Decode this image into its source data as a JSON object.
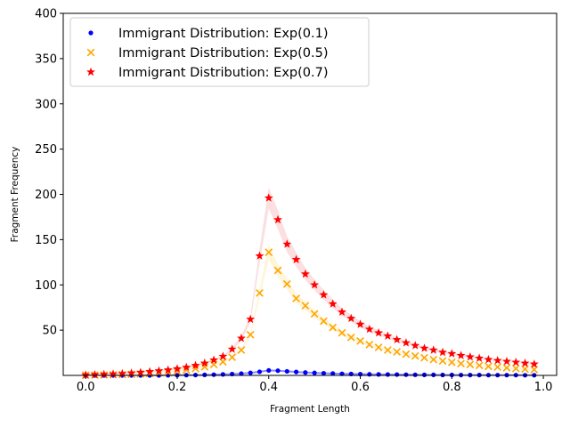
{
  "chart_data": {
    "type": "scatter",
    "xlabel": "Fragment Length",
    "ylabel": "Fragment Frequency",
    "xlim": [
      -0.049,
      1.029
    ],
    "ylim": [
      0,
      400
    ],
    "xticks": [
      {
        "value": 0.0,
        "label": "0.0"
      },
      {
        "value": 0.2,
        "label": "0.2"
      },
      {
        "value": 0.4,
        "label": "0.4"
      },
      {
        "value": 0.6,
        "label": "0.6"
      },
      {
        "value": 0.8,
        "label": "0.8"
      },
      {
        "value": 1.0,
        "label": "1.0"
      }
    ],
    "yticks": [
      {
        "value": 50,
        "label": "50"
      },
      {
        "value": 100,
        "label": "100"
      },
      {
        "value": 150,
        "label": "150"
      },
      {
        "value": 200,
        "label": "200"
      },
      {
        "value": 250,
        "label": "250"
      },
      {
        "value": 300,
        "label": "300"
      },
      {
        "value": 350,
        "label": "350"
      },
      {
        "value": 400,
        "label": "400"
      }
    ],
    "grid": false,
    "legend_position": "top-left",
    "x": [
      0.0,
      0.02,
      0.04,
      0.06,
      0.08,
      0.1,
      0.12,
      0.14,
      0.16,
      0.18,
      0.2,
      0.22,
      0.24,
      0.26,
      0.28,
      0.3,
      0.32,
      0.34,
      0.36,
      0.38,
      0.4,
      0.42,
      0.44,
      0.46,
      0.48,
      0.5,
      0.52,
      0.54,
      0.56,
      0.58,
      0.6,
      0.62,
      0.64,
      0.66,
      0.68,
      0.7,
      0.72,
      0.74,
      0.76,
      0.78,
      0.8,
      0.82,
      0.84,
      0.86,
      0.88,
      0.9,
      0.92,
      0.94,
      0.96,
      0.98
    ],
    "series": [
      {
        "name": "Immigrant Distribution: Exp(0.1)",
        "marker": "circle",
        "color": "#0000ff",
        "band_color": "#0000ff",
        "values": [
          0,
          0,
          0,
          0,
          0,
          0,
          0,
          0,
          0,
          0.1,
          0.2,
          0.3,
          0.4,
          0.6,
          0.8,
          1.1,
          1.5,
          2.0,
          2.8,
          4.0,
          5.5,
          5.2,
          4.5,
          3.8,
          3.2,
          2.8,
          2.4,
          2.1,
          1.8,
          1.6,
          1.4,
          1.2,
          1.1,
          1.0,
          0.9,
          0.8,
          0.7,
          0.6,
          0.6,
          0.5,
          0.5,
          0.4,
          0.4,
          0.4,
          0.3,
          0.3,
          0.3,
          0.3,
          0.2,
          0.2
        ]
      },
      {
        "name": "Immigrant Distribution: Exp(0.5)",
        "marker": "x",
        "color": "#ffa500",
        "band_color": "#ffe8a8",
        "values": [
          0.2,
          0.3,
          0.5,
          0.7,
          0.9,
          1.2,
          1.6,
          2.1,
          2.8,
          3.6,
          4.6,
          6.0,
          7.5,
          9.5,
          12,
          15,
          20,
          28,
          45,
          91,
          136,
          116,
          101,
          85,
          77,
          68,
          60,
          53,
          47,
          42,
          38,
          34,
          31,
          28,
          26,
          23.5,
          21.5,
          19.5,
          17.5,
          16,
          14.5,
          13,
          12,
          11,
          10,
          9.2,
          8.4,
          7.6,
          7,
          6.4
        ]
      },
      {
        "name": "Immigrant Distribution: Exp(0.7)",
        "marker": "star",
        "color": "#ff0000",
        "band_color": "#f7b9bd",
        "values": [
          0.5,
          0.8,
          1.1,
          1.5,
          2.0,
          2.6,
          3.3,
          4.1,
          5.0,
          6.0,
          7.3,
          9.0,
          11,
          13.5,
          17,
          21,
          29,
          41,
          62,
          132,
          196,
          172,
          145,
          128,
          112,
          100,
          89,
          79,
          70,
          63,
          56.5,
          51,
          47,
          43.5,
          39.5,
          36,
          33,
          30,
          28,
          25.5,
          24,
          22,
          20.5,
          19,
          17.5,
          16.5,
          15.5,
          14.5,
          13.5,
          12.5
        ]
      }
    ]
  }
}
